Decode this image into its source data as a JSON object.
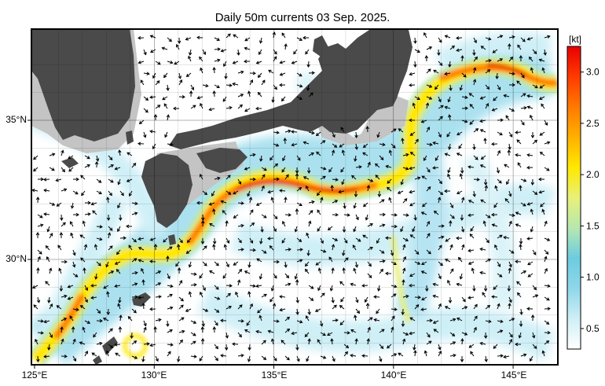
{
  "map": {
    "title": "Daily 50m currents 03 Sep. 2025.",
    "lon_ticks": [
      "125°E",
      "130°E",
      "135°E",
      "140°E",
      "145°E"
    ],
    "lat_ticks": [
      "35°N",
      "30°N"
    ],
    "lon_range": [
      125,
      147
    ],
    "lat_range": [
      26,
      37.5
    ],
    "colorbar": {
      "unit": "[kt]",
      "ticks": [
        "0.5",
        "1.0",
        "1.5",
        "2.0",
        "2.5",
        "3.0"
      ],
      "range": [
        0.3,
        3.25
      ],
      "colors": [
        "#ffffff",
        "#cfeff6",
        "#8fd7ea",
        "#6ccbe0",
        "#b6e8b0",
        "#e8f07a",
        "#ffe800",
        "#ffb000",
        "#ff7a00",
        "#ff3a00",
        "#e80000"
      ]
    },
    "colors": {
      "land": "#4a4a4a",
      "land_outer": "#c4c4c4",
      "grid": "#000000",
      "vector": "#000000"
    }
  }
}
